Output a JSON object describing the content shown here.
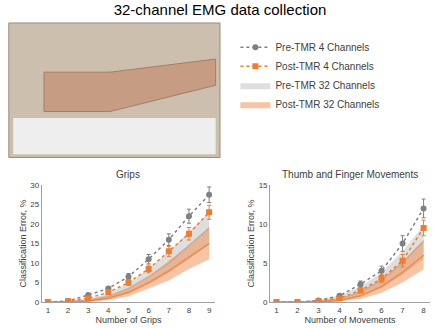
{
  "title": "32-channel EMG data collection",
  "chart_data": [
    {
      "type": "line",
      "title": "Grips",
      "x_label": "Number of Grips",
      "y_label": "Classification Error, %",
      "x": [
        1,
        2,
        3,
        4,
        5,
        6,
        7,
        8,
        9
      ],
      "xlim": [
        0.7,
        9.3
      ],
      "xticks": [
        1,
        2,
        3,
        4,
        5,
        6,
        7,
        8,
        9
      ],
      "ylim": [
        0,
        30
      ],
      "yticks": [
        0,
        5,
        10,
        15,
        20,
        25,
        30
      ],
      "grid": false,
      "legend": "upper right",
      "series": [
        {
          "name": "Pre-TMR 4 Channels",
          "type": "line",
          "color": "#808080",
          "marker": "circle",
          "line_style": "dot",
          "values": [
            0,
            0.3,
            1.8,
            3.5,
            6.5,
            11,
            16,
            22,
            27.5
          ],
          "error": [
            0,
            0,
            0.3,
            0.5,
            0.8,
            1.2,
            1.5,
            1.8,
            2
          ]
        },
        {
          "name": "Post-TMR 4 Channels",
          "type": "line",
          "color": "#ed7d31",
          "marker": "square",
          "line_style": "dot",
          "values": [
            0,
            0.2,
            1,
            2.5,
            5,
            8.5,
            13,
            17.5,
            23
          ],
          "error": [
            0,
            0,
            0.2,
            0.4,
            0.7,
            1,
            1.3,
            1.6,
            1.8
          ]
        },
        {
          "name": "Pre-TMR 32 Channels",
          "type": "area",
          "color": "#bdbdbd",
          "values": [
            0,
            0.1,
            0.5,
            1.5,
            3.5,
            6.5,
            10,
            14.5,
            19
          ],
          "lower": [
            0,
            0,
            0.2,
            0.8,
            2.2,
            4.5,
            7.5,
            11,
            15
          ],
          "upper": [
            0,
            0.2,
            0.8,
            2.2,
            4.8,
            8.5,
            13,
            18,
            23
          ]
        },
        {
          "name": "Post-TMR 32 Channels",
          "type": "area",
          "color": "#f08a4b",
          "values": [
            0,
            0,
            0.3,
            1,
            2.5,
            5,
            8,
            11.5,
            15
          ],
          "lower": [
            0,
            0,
            0,
            0.5,
            1.5,
            3.5,
            5.5,
            8.5,
            11
          ],
          "upper": [
            0,
            0.1,
            0.6,
            1.5,
            3.5,
            6.5,
            10.5,
            14.5,
            19
          ]
        }
      ]
    },
    {
      "type": "line",
      "title": "Thumb and Finger Movements",
      "x_label": "Number of Movements",
      "y_label": "Classification Error, %",
      "x": [
        1,
        2,
        3,
        4,
        5,
        6,
        7,
        8
      ],
      "xlim": [
        0.7,
        8.3
      ],
      "xticks": [
        1,
        2,
        3,
        4,
        5,
        6,
        7,
        8
      ],
      "ylim": [
        0,
        15
      ],
      "yticks": [
        0,
        5,
        10,
        15
      ],
      "grid": false,
      "series": [
        {
          "name": "Pre-TMR 4 Channels",
          "type": "line",
          "color": "#808080",
          "marker": "circle",
          "line_style": "dot",
          "values": [
            0,
            0,
            0.2,
            0.8,
            2.3,
            4,
            7.5,
            12
          ],
          "error": [
            0,
            0,
            0.1,
            0.2,
            0.4,
            0.6,
            1,
            1.2
          ]
        },
        {
          "name": "Post-TMR 4 Channels",
          "type": "line",
          "color": "#ed7d31",
          "marker": "square",
          "line_style": "dot",
          "values": [
            0,
            0,
            0.1,
            0.5,
            1.5,
            3,
            5.3,
            9.5
          ],
          "error": [
            0,
            0,
            0.1,
            0.2,
            0.3,
            0.5,
            0.8,
            1
          ]
        },
        {
          "name": "Pre-TMR 32 Channels",
          "type": "area",
          "color": "#bdbdbd",
          "values": [
            0,
            0,
            0.1,
            0.4,
            1.3,
            2.8,
            5,
            7.8
          ],
          "lower": [
            0,
            0,
            0,
            0.2,
            0.8,
            1.8,
            3.5,
            5.5
          ],
          "upper": [
            0,
            0,
            0.3,
            0.8,
            2,
            3.8,
            6.5,
            9.8
          ]
        },
        {
          "name": "Post-TMR 32 Channels",
          "type": "area",
          "color": "#f08a4b",
          "values": [
            0,
            0,
            0,
            0.2,
            0.8,
            2,
            3.8,
            6
          ],
          "lower": [
            0,
            0,
            0,
            0.1,
            0.4,
            1.2,
            2.5,
            4.2
          ],
          "upper": [
            0,
            0,
            0.1,
            0.4,
            1.3,
            2.9,
            5.2,
            8
          ]
        }
      ]
    }
  ]
}
